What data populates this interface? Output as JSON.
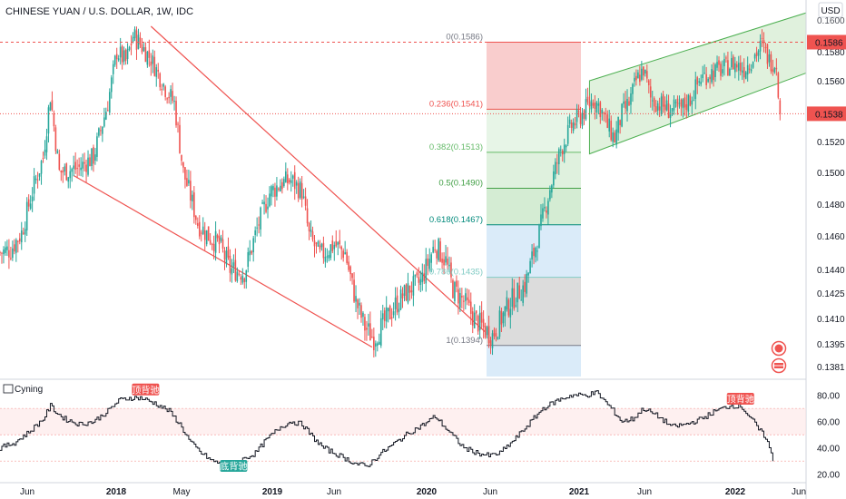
{
  "header": {
    "title": "CHINESE YUAN / U.S. DOLLAR, 1W, IDC",
    "currency": "USD"
  },
  "colors": {
    "up": "#26a69a",
    "down": "#ef5350",
    "fib_top": "#f8c8c8",
    "fib_mid": "#d4ecd3",
    "fib_low": "#d8d8d8",
    "fib_blue": "#d6e9f8",
    "channel": "#d6ecd2",
    "wedge": "#ef5350",
    "price_tag": "#ef5350"
  },
  "chart_data": [
    {
      "type": "candlestick",
      "title": "CHINESE YUAN / U.S. DOLLAR, 1W, IDC",
      "x_ticks": [
        "Jun",
        "2018",
        "May",
        "2019",
        "Jun",
        "2020",
        "Jun",
        "2021",
        "Jun",
        "2022",
        "Jun"
      ],
      "y_ticks": [
        "0.1600",
        "0.1580",
        "0.1560",
        "0.1540",
        "0.1520",
        "0.1500",
        "0.1480",
        "0.1460",
        "0.1440",
        "0.1425",
        "0.1410",
        "0.1395",
        "0.1381"
      ],
      "ylim": [
        0.1376,
        0.1606
      ],
      "price_labels": {
        "high_line": "0.1586",
        "last": "0.1538"
      },
      "anchors_week_close": [
        [
          0,
          0.145
        ],
        [
          6,
          0.1452
        ],
        [
          12,
          0.1462
        ],
        [
          18,
          0.1488
        ],
        [
          24,
          0.151
        ],
        [
          28,
          0.155
        ],
        [
          31,
          0.152
        ],
        [
          33,
          0.15
        ],
        [
          44,
          0.1503
        ],
        [
          52,
          0.151
        ],
        [
          60,
          0.1545
        ],
        [
          65,
          0.158
        ],
        [
          70,
          0.1573
        ],
        [
          74,
          0.159
        ],
        [
          78,
          0.1585
        ],
        [
          84,
          0.1575
        ],
        [
          92,
          0.1555
        ],
        [
          97,
          0.1545
        ],
        [
          102,
          0.15
        ],
        [
          106,
          0.1485
        ],
        [
          110,
          0.1468
        ],
        [
          116,
          0.146
        ],
        [
          122,
          0.1455
        ],
        [
          128,
          0.144
        ],
        [
          136,
          0.1438
        ],
        [
          144,
          0.1468
        ],
        [
          150,
          0.1487
        ],
        [
          156,
          0.1493
        ],
        [
          162,
          0.1495
        ],
        [
          168,
          0.1488
        ],
        [
          172,
          0.146
        ],
        [
          178,
          0.1448
        ],
        [
          186,
          0.1455
        ],
        [
          192,
          0.145
        ],
        [
          198,
          0.142
        ],
        [
          203,
          0.1405
        ],
        [
          208,
          0.1398
        ],
        [
          214,
          0.1408
        ],
        [
          220,
          0.1418
        ],
        [
          228,
          0.1428
        ],
        [
          234,
          0.1432
        ],
        [
          242,
          0.1455
        ],
        [
          248,
          0.1445
        ],
        [
          252,
          0.1428
        ],
        [
          258,
          0.142
        ],
        [
          264,
          0.141
        ],
        [
          270,
          0.1403
        ],
        [
          274,
          0.14
        ],
        [
          278,
          0.1408
        ],
        [
          284,
          0.142
        ],
        [
          292,
          0.143
        ],
        [
          300,
          0.1462
        ],
        [
          306,
          0.149
        ],
        [
          312,
          0.1515
        ],
        [
          318,
          0.153
        ],
        [
          324,
          0.1538
        ],
        [
          330,
          0.1548
        ],
        [
          334,
          0.1542
        ],
        [
          338,
          0.153
        ],
        [
          342,
          0.1522
        ],
        [
          346,
          0.1538
        ],
        [
          350,
          0.1545
        ],
        [
          354,
          0.156
        ],
        [
          358,
          0.1568
        ],
        [
          362,
          0.1548
        ],
        [
          366,
          0.1545
        ],
        [
          372,
          0.1541
        ],
        [
          378,
          0.154
        ],
        [
          384,
          0.1548
        ],
        [
          390,
          0.1562
        ],
        [
          396,
          0.1566
        ],
        [
          402,
          0.1568
        ],
        [
          408,
          0.1572
        ],
        [
          414,
          0.1568
        ],
        [
          420,
          0.1578
        ],
        [
          424,
          0.1584
        ],
        [
          428,
          0.1574
        ],
        [
          432,
          0.1572
        ],
        [
          434,
          0.1538
        ]
      ],
      "fibonacci_retracement": [
        {
          "level": "0",
          "price": 0.1586,
          "label": "0(0.1586)"
        },
        {
          "level": "0.236",
          "price": 0.1541,
          "label": "0.236(0.1541)"
        },
        {
          "level": "0.382",
          "price": 0.1513,
          "label": "0.382(0.1513)"
        },
        {
          "level": "0.5",
          "price": 0.149,
          "label": "0.5(0.1490)"
        },
        {
          "level": "0.618",
          "price": 0.1467,
          "label": "0.618(0.1467)"
        },
        {
          "level": "0.786",
          "price": 0.1435,
          "label": "0.786(0.1435)"
        },
        {
          "level": "1",
          "price": 0.1394,
          "label": "1(0.1394)"
        }
      ]
    },
    {
      "type": "line",
      "title": "Cyning",
      "y_ticks": [
        "80.00",
        "60.00",
        "40.00",
        "20.00"
      ],
      "ylim": [
        15,
        88
      ],
      "hlines": [
        70,
        50,
        30
      ],
      "badges": [
        {
          "text": "顶背驰",
          "week": 81,
          "value": 84,
          "color": "#ef5350"
        },
        {
          "text": "底背驰",
          "week": 130,
          "value": 26,
          "color": "#26a69a"
        },
        {
          "text": "顶背驰",
          "week": 412,
          "value": 77,
          "color": "#ef5350"
        }
      ],
      "anchors_week_value": [
        [
          0,
          40
        ],
        [
          8,
          44
        ],
        [
          16,
          52
        ],
        [
          24,
          62
        ],
        [
          28,
          72
        ],
        [
          32,
          66
        ],
        [
          36,
          62
        ],
        [
          44,
          58
        ],
        [
          52,
          60
        ],
        [
          60,
          68
        ],
        [
          66,
          76
        ],
        [
          72,
          78
        ],
        [
          78,
          78
        ],
        [
          86,
          74
        ],
        [
          94,
          68
        ],
        [
          100,
          58
        ],
        [
          106,
          44
        ],
        [
          112,
          36
        ],
        [
          118,
          30
        ],
        [
          124,
          28
        ],
        [
          130,
          28
        ],
        [
          136,
          32
        ],
        [
          142,
          36
        ],
        [
          148,
          46
        ],
        [
          156,
          56
        ],
        [
          162,
          60
        ],
        [
          168,
          58
        ],
        [
          174,
          48
        ],
        [
          180,
          40
        ],
        [
          186,
          36
        ],
        [
          192,
          32
        ],
        [
          198,
          28
        ],
        [
          204,
          26
        ],
        [
          212,
          36
        ],
        [
          220,
          44
        ],
        [
          228,
          52
        ],
        [
          236,
          58
        ],
        [
          242,
          64
        ],
        [
          250,
          52
        ],
        [
          258,
          40
        ],
        [
          266,
          36
        ],
        [
          272,
          34
        ],
        [
          278,
          36
        ],
        [
          286,
          46
        ],
        [
          294,
          58
        ],
        [
          302,
          70
        ],
        [
          310,
          76
        ],
        [
          318,
          80
        ],
        [
          326,
          80
        ],
        [
          332,
          82
        ],
        [
          340,
          70
        ],
        [
          346,
          60
        ],
        [
          352,
          62
        ],
        [
          358,
          70
        ],
        [
          366,
          64
        ],
        [
          374,
          56
        ],
        [
          382,
          58
        ],
        [
          390,
          62
        ],
        [
          398,
          68
        ],
        [
          406,
          72
        ],
        [
          412,
          72
        ],
        [
          418,
          62
        ],
        [
          422,
          54
        ],
        [
          426,
          48
        ],
        [
          428,
          40
        ],
        [
          430,
          30
        ]
      ]
    }
  ]
}
